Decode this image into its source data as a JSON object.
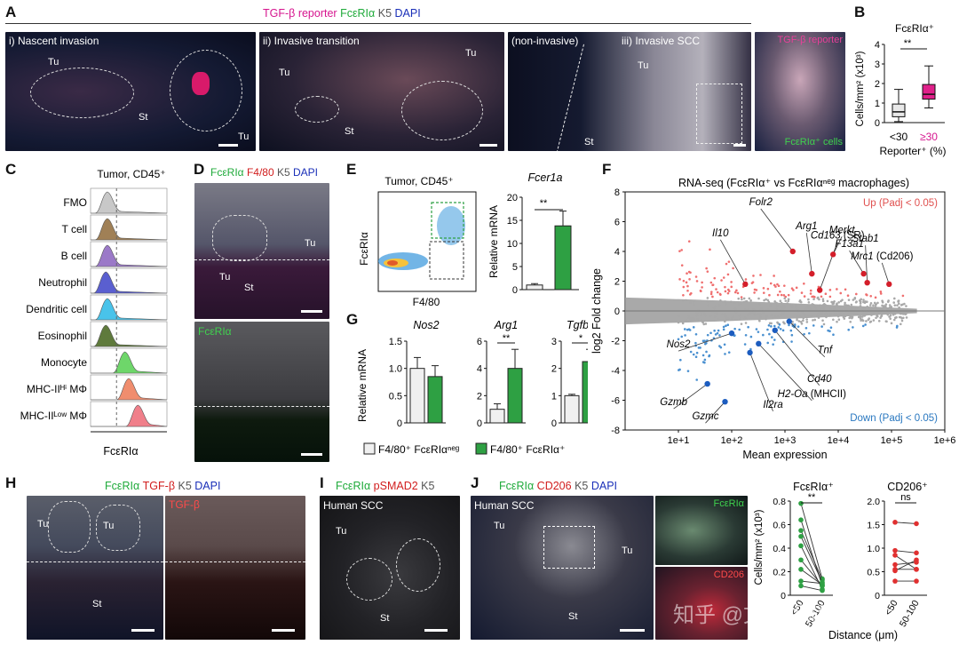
{
  "panelA": {
    "letter": "A",
    "header_parts": [
      {
        "text": "TGF-β reporter",
        "color": "#d6168f"
      },
      {
        "text": "FcεRIα",
        "color": "#1faa3a"
      },
      {
        "text": "K5",
        "color": "#555555"
      },
      {
        "text": "DAPI",
        "color": "#1a2fb8"
      }
    ],
    "sub_labels": [
      "i) Nascent invasion",
      "ii) Invasive transition",
      "(non-invasive)",
      "iii) Invasive SCC"
    ],
    "tissue_labels": [
      "Tu",
      "St",
      "Tu",
      "Tu",
      "St",
      "Tu",
      "Tu",
      "St"
    ],
    "inset_top": "TGF-β reporter",
    "inset_bottom": "FcεRIα⁺ cells"
  },
  "panelB": {
    "letter": "B",
    "title": "FcεRIα⁺",
    "ylabel": "Cells/mm² (x10³)",
    "xlabel": "Reporter⁺ (%)",
    "sig": "**",
    "box_colors": [
      "#e8e8e8",
      "#e0218a"
    ],
    "chart_data": {
      "type": "box",
      "categories": [
        "<30",
        "≥30"
      ],
      "category_colors": [
        "#111111",
        "#d6168f"
      ],
      "ylim": [
        0,
        4
      ],
      "yticks": [
        0,
        1,
        2,
        3,
        4
      ],
      "boxes": [
        {
          "min": 0.05,
          "q1": 0.3,
          "median": 0.55,
          "q3": 0.95,
          "max": 1.7
        },
        {
          "min": 0.75,
          "q1": 1.2,
          "median": 1.45,
          "q3": 1.95,
          "max": 2.9
        }
      ]
    }
  },
  "panelC": {
    "letter": "C",
    "title": "Tumor, CD45⁺",
    "xlabel": "FcεRIα",
    "rows": [
      {
        "label": "FMO",
        "color": "#c8c8c8",
        "peak": 0.22
      },
      {
        "label": "T cell",
        "color": "#a08056",
        "peak": 0.22
      },
      {
        "label": "B cell",
        "color": "#9b79c8",
        "peak": 0.22
      },
      {
        "label": "Neutrophil",
        "color": "#5a5fd0",
        "peak": 0.2
      },
      {
        "label": "Dendritic cell",
        "color": "#49c3ea",
        "peak": 0.22
      },
      {
        "label": "Eosinophil",
        "color": "#5f7a3c",
        "peak": 0.2
      },
      {
        "label": "Monocyte",
        "color": "#6ed66a",
        "peak": 0.45
      },
      {
        "label": "MHC-IIᴴⁱ MΦ",
        "color": "#f08d6e",
        "peak": 0.5
      },
      {
        "label": "MHC-IIᴸᵒʷ MΦ",
        "color": "#f07f8a",
        "peak": 0.62
      }
    ]
  },
  "panelD": {
    "letter": "D",
    "header_parts": [
      {
        "text": "FcεRIα",
        "color": "#1faa3a"
      },
      {
        "text": "F4/80",
        "color": "#d11d1d"
      },
      {
        "text": "K5",
        "color": "#555555"
      },
      {
        "text": "DAPI",
        "color": "#1a2fb8"
      }
    ],
    "tissue_labels": [
      "Tu",
      "Tu",
      "St"
    ],
    "lower_label": "FcεRIα"
  },
  "panelE": {
    "letter": "E",
    "flow_title": "Tumor, CD45⁺",
    "flow_ylabel": "FcεRIα",
    "flow_xlabel": "F4/80",
    "bar_title": "Fcer1a",
    "bar_ylabel": "Relative mRNA",
    "sig": "**",
    "chart_data": {
      "type": "bar",
      "categories": [
        "F4/80⁺ FcεRIαⁿᵉᵍ",
        "F4/80⁺ FcεRIα⁺"
      ],
      "values": [
        1.0,
        13.8
      ],
      "errors": [
        0.3,
        3.2
      ],
      "ylim": [
        0,
        20
      ],
      "yticks": [
        0,
        5,
        10,
        15,
        20
      ],
      "colors": [
        "#f0f0f0",
        "#2ea043"
      ]
    }
  },
  "panelF": {
    "letter": "F",
    "title": "RNA-seq (FcεRIα⁺ vs FcεRIαⁿᵉᵍ macrophages)",
    "up_label": "Up (Padj < 0.05)",
    "down_label": "Down (Padj < 0.05)",
    "ylabel": "log2 Fold change",
    "xlabel": "Mean expression",
    "up_color": "#ef6f6f",
    "down_color": "#4a90d0",
    "chart_data": {
      "type": "scatter",
      "x_scale": "log10",
      "xlim": [
        1,
        1000000
      ],
      "ylim": [
        -8,
        8
      ],
      "xticks": [
        "1e+1",
        "1e+2",
        "1e+3",
        "1e+4",
        "1e+5",
        "1e+6"
      ],
      "yticks": [
        -8,
        -6,
        -4,
        -2,
        0,
        2,
        4,
        6,
        8
      ],
      "highlighted_genes": [
        {
          "gene": "Il10",
          "x": 180,
          "y": 1.8,
          "group": "up"
        },
        {
          "gene": "Folr2",
          "x": 1400,
          "y": 4.0,
          "group": "up"
        },
        {
          "gene": "Arg1",
          "x": 3200,
          "y": 2.5,
          "group": "up"
        },
        {
          "gene": "Cd163",
          "note": "(SR)",
          "x": 4500,
          "y": 1.4,
          "group": "up"
        },
        {
          "gene": "Merkt",
          "x": 8000,
          "y": 3.8,
          "group": "up"
        },
        {
          "gene": "F13a1",
          "x": 30000,
          "y": 2.5,
          "group": "up"
        },
        {
          "gene": "Stab1",
          "x": 35000,
          "y": 1.9,
          "group": "up"
        },
        {
          "gene": "Mrc1",
          "note": "(Cd206)",
          "x": 90000,
          "y": 1.8,
          "group": "up"
        },
        {
          "gene": "Nos2",
          "x": 100,
          "y": -1.5,
          "group": "down"
        },
        {
          "gene": "Tnf",
          "x": 1200,
          "y": -0.7,
          "group": "down"
        },
        {
          "gene": "Cd40",
          "x": 650,
          "y": -1.3,
          "group": "down"
        },
        {
          "gene": "H2-Oa",
          "note": "(MHCII)",
          "x": 320,
          "y": -2.2,
          "group": "down"
        },
        {
          "gene": "Il2ra",
          "x": 220,
          "y": -2.8,
          "group": "down"
        },
        {
          "gene": "Gzmb",
          "x": 35,
          "y": -4.9,
          "group": "down"
        },
        {
          "gene": "Gzmc",
          "x": 75,
          "y": -6.1,
          "group": "down"
        }
      ]
    }
  },
  "panelG": {
    "letter": "G",
    "ylabel": "Relative mRNA",
    "colors": [
      "#f0f0f0",
      "#2ea043"
    ],
    "legend": [
      "F4/80⁺ FcεRIαⁿᵉᵍ",
      "F4/80⁺ FcεRIα⁺"
    ],
    "chart_data": [
      {
        "type": "bar",
        "title": "Nos2",
        "values": [
          1.0,
          0.85
        ],
        "errors": [
          0.2,
          0.2
        ],
        "ylim": [
          0,
          1.5
        ],
        "yticks": [
          "0",
          "0.5",
          "1.0",
          "1.5"
        ],
        "sig": ""
      },
      {
        "type": "bar",
        "title": "Arg1",
        "values": [
          1.0,
          4.0
        ],
        "errors": [
          0.4,
          1.4
        ],
        "ylim": [
          0,
          6
        ],
        "yticks": [
          "0",
          "2",
          "4",
          "6"
        ],
        "sig": "**"
      },
      {
        "type": "bar",
        "title": "Tgfb1",
        "values": [
          1.0,
          2.25
        ],
        "errors": [
          0.05,
          0.45
        ],
        "ylim": [
          0,
          3
        ],
        "yticks": [
          "0",
          "1",
          "2",
          "3"
        ],
        "sig": "*"
      }
    ]
  },
  "panelH": {
    "letter": "H",
    "header_parts": [
      {
        "text": "FcεRIα",
        "color": "#1faa3a"
      },
      {
        "text": "TGF-β",
        "color": "#d11d1d"
      },
      {
        "text": "K5",
        "color": "#555555"
      },
      {
        "text": "DAPI",
        "color": "#1a2fb8"
      }
    ],
    "tissue_labels": [
      "Tu",
      "Tu",
      "St"
    ],
    "right_label": "TGF-β"
  },
  "panelI": {
    "letter": "I",
    "header_parts": [
      {
        "text": "FcεRIα",
        "color": "#1faa3a"
      },
      {
        "text": "pSMAD2",
        "color": "#d11d1d"
      },
      {
        "text": "K5",
        "color": "#555555"
      }
    ],
    "sample": "Human SCC",
    "tissue_labels": [
      "Tu",
      "St"
    ]
  },
  "panelJ": {
    "letter": "J",
    "header_parts": [
      {
        "text": "FcεRIα",
        "color": "#1faa3a"
      },
      {
        "text": "CD206",
        "color": "#d11d1d"
      },
      {
        "text": "K5",
        "color": "#555555"
      },
      {
        "text": "DAPI",
        "color": "#1a2fb8"
      }
    ],
    "sample": "Human SCC",
    "tissue_labels": [
      "Tu",
      "Tu",
      "St"
    ],
    "inset_top": "FcεRIα",
    "inset_bottom": "CD206",
    "xlabel": "Distance (μm)",
    "chart_data": [
      {
        "type": "paired",
        "title": "FcεRIα⁺",
        "ylabel": "Cells/mm² (x10³)",
        "categories": [
          "<50",
          "50-100"
        ],
        "ylim": [
          0,
          0.8
        ],
        "yticks": [
          "0",
          "0.2",
          "0.4",
          "0.6",
          "0.8"
        ],
        "sig": "**",
        "color": "#2ea043",
        "pairs": [
          [
            0.78,
            0.14
          ],
          [
            0.64,
            0.08
          ],
          [
            0.55,
            0.13
          ],
          [
            0.5,
            0.11
          ],
          [
            0.42,
            0.05
          ],
          [
            0.3,
            0.08
          ],
          [
            0.22,
            0.09
          ],
          [
            0.12,
            0.1
          ],
          [
            0.08,
            0.04
          ]
        ]
      },
      {
        "type": "paired",
        "title": "CD206⁺",
        "categories": [
          "<50",
          "50-100"
        ],
        "ylim": [
          0,
          2.0
        ],
        "yticks": [
          "0",
          "0.5",
          "1.0",
          "1.5",
          "2.0"
        ],
        "sig": "ns",
        "color": "#e03030",
        "pairs": [
          [
            1.55,
            1.52
          ],
          [
            0.95,
            0.9
          ],
          [
            0.85,
            0.55
          ],
          [
            0.65,
            0.7
          ],
          [
            0.55,
            0.55
          ],
          [
            0.52,
            0.75
          ],
          [
            0.3,
            0.3
          ]
        ]
      }
    ]
  },
  "watermark": "知乎 @文献拆解工"
}
